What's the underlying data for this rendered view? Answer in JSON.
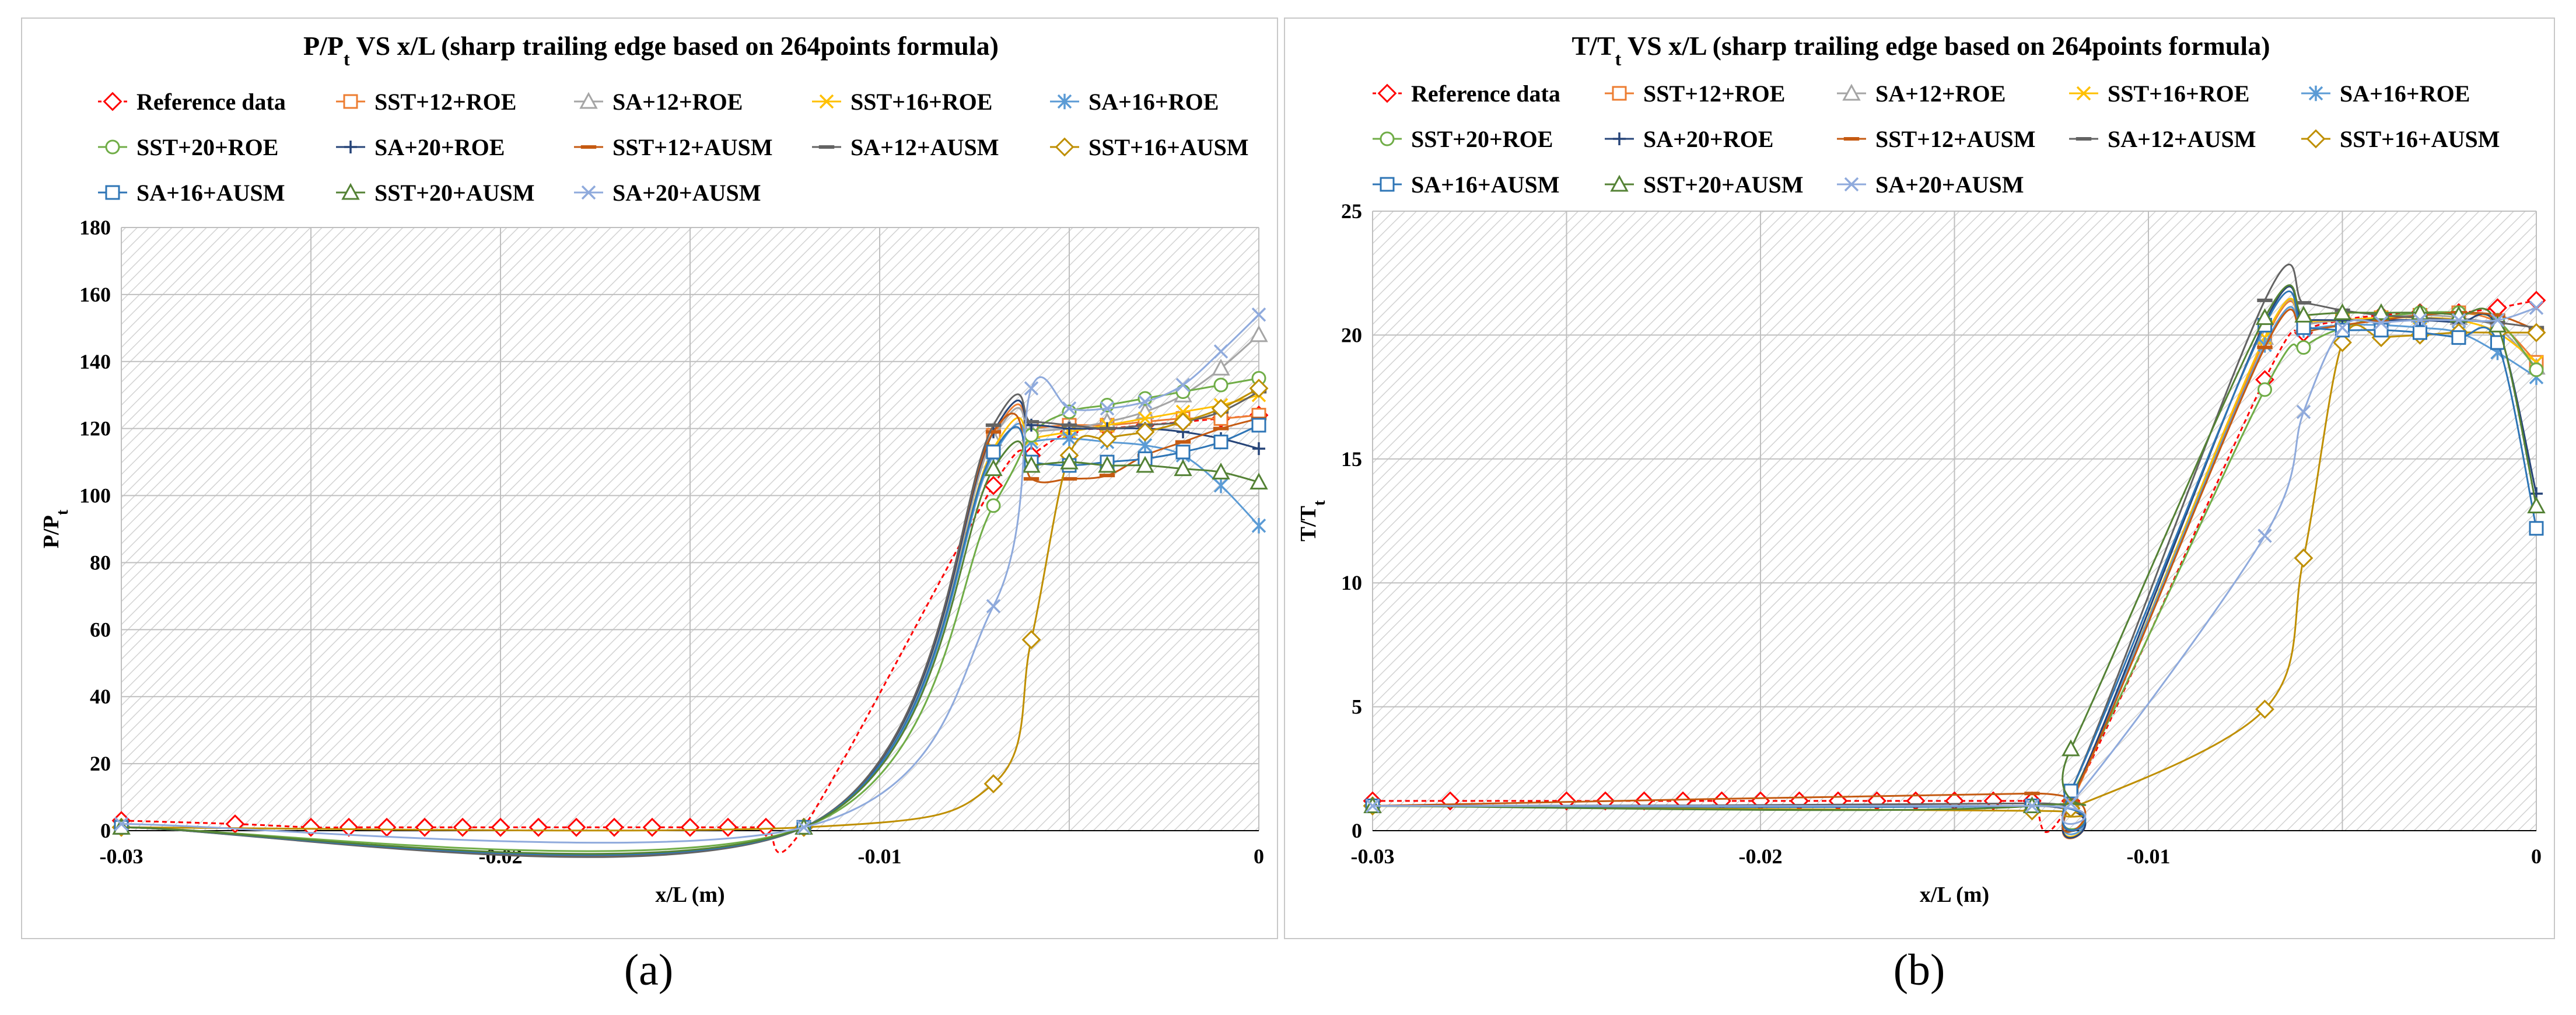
{
  "panel_labels": [
    "(a)",
    "(b)"
  ],
  "series_styles": [
    {
      "name": "Reference data",
      "color": "#ff0000",
      "marker": "diamond",
      "dashed": true
    },
    {
      "name": "SST+12+ROE",
      "color": "#ed7d31",
      "marker": "square"
    },
    {
      "name": "SA+12+ROE",
      "color": "#a5a5a5",
      "marker": "triangle"
    },
    {
      "name": "SST+16+ROE",
      "color": "#ffc000",
      "marker": "x"
    },
    {
      "name": "SA+16+ROE",
      "color": "#5b9bd5",
      "marker": "star"
    },
    {
      "name": "SST+20+ROE",
      "color": "#70ad47",
      "marker": "circle"
    },
    {
      "name": "SA+20+ROE",
      "color": "#264478",
      "marker": "plus"
    },
    {
      "name": "SST+12+AUSM",
      "color": "#c55a11",
      "marker": "dash"
    },
    {
      "name": "SA+12+AUSM",
      "color": "#636363",
      "marker": "dash"
    },
    {
      "name": "SST+16+AUSM",
      "color": "#bf8f00",
      "marker": "diamond"
    },
    {
      "name": "SA+16+AUSM",
      "color": "#2e75b6",
      "marker": "square"
    },
    {
      "name": "SST+20+AUSM",
      "color": "#548235",
      "marker": "triangle"
    },
    {
      "name": "SA+20+AUSM",
      "color": "#8faadc",
      "marker": "x"
    }
  ],
  "chart_data": [
    {
      "type": "line",
      "title_main": "P/P",
      "title_sub": "t",
      "title_rest": " VS x/L (sharp trailing edge based on 264points formula)",
      "xlabel": "x/L (m)",
      "ylabel_main": "P/P",
      "ylabel_sub": "t",
      "xlim": [
        -0.03,
        0
      ],
      "ylim": [
        0,
        180
      ],
      "x_ticks": [
        -0.03,
        -0.02,
        -0.01,
        0
      ],
      "x_tick_labels": [
        "-0.03",
        "-0.02",
        "-0.01",
        "0"
      ],
      "y_ticks": [
        0,
        20,
        40,
        60,
        80,
        100,
        120,
        140,
        160,
        180
      ],
      "y_tick_labels": [
        "0",
        "20",
        "40",
        "60",
        "80",
        "100",
        "120",
        "140",
        "160",
        "180"
      ],
      "legend_cols": 5,
      "series": [
        {
          "name": "Reference data",
          "x": [
            -0.03,
            -0.027,
            -0.025,
            -0.024,
            -0.023,
            -0.022,
            -0.021,
            -0.02,
            -0.019,
            -0.018,
            -0.017,
            -0.016,
            -0.015,
            -0.014,
            -0.013,
            -0.012,
            -0.007,
            -0.006,
            -0.005,
            -0.004,
            -0.003,
            -0.002,
            -0.001,
            0
          ],
          "y": [
            3,
            2,
            1,
            1,
            1,
            1,
            1,
            1,
            1,
            1,
            1,
            1,
            1,
            1,
            1,
            1,
            103,
            112,
            119,
            120,
            121,
            122,
            123,
            124
          ]
        },
        {
          "name": "SST+12+ROE",
          "x": [
            -0.03,
            -0.012,
            -0.007,
            -0.006,
            -0.005,
            -0.004,
            -0.003,
            -0.002,
            -0.001,
            0
          ],
          "y": [
            1,
            1,
            118,
            120,
            121,
            121,
            122,
            123,
            123,
            124
          ]
        },
        {
          "name": "SA+12+ROE",
          "x": [
            -0.03,
            -0.012,
            -0.007,
            -0.006,
            -0.005,
            -0.004,
            -0.003,
            -0.002,
            -0.001,
            0
          ],
          "y": [
            1,
            1,
            117,
            119,
            120,
            122,
            125,
            130,
            138,
            148
          ]
        },
        {
          "name": "SST+16+ROE",
          "x": [
            -0.03,
            -0.012,
            -0.007,
            -0.006,
            -0.005,
            -0.004,
            -0.003,
            -0.002,
            -0.001,
            0
          ],
          "y": [
            1,
            1,
            114,
            117,
            119,
            121,
            123,
            125,
            127,
            130
          ]
        },
        {
          "name": "SA+16+ROE",
          "x": [
            -0.03,
            -0.012,
            -0.007,
            -0.006,
            -0.005,
            -0.004,
            -0.003,
            -0.002,
            -0.001,
            0
          ],
          "y": [
            1,
            1,
            112,
            116,
            117,
            116,
            115,
            112,
            103,
            91
          ]
        },
        {
          "name": "SST+20+ROE",
          "x": [
            -0.03,
            -0.012,
            -0.007,
            -0.006,
            -0.005,
            -0.004,
            -0.003,
            -0.002,
            -0.001,
            0
          ],
          "y": [
            1,
            1,
            97,
            118,
            125,
            127,
            129,
            131,
            133,
            135
          ]
        },
        {
          "name": "SA+20+ROE",
          "x": [
            -0.03,
            -0.012,
            -0.007,
            -0.006,
            -0.005,
            -0.004,
            -0.003,
            -0.002,
            -0.001,
            0
          ],
          "y": [
            1,
            1,
            119,
            121,
            120,
            120,
            120,
            119,
            117,
            114
          ]
        },
        {
          "name": "SST+12+AUSM",
          "x": [
            -0.03,
            -0.012,
            -0.007,
            -0.006,
            -0.005,
            -0.004,
            -0.003,
            -0.002,
            -0.001,
            0
          ],
          "y": [
            1,
            1,
            119,
            105,
            105,
            106,
            112,
            116,
            120,
            123
          ]
        },
        {
          "name": "SA+12+AUSM",
          "x": [
            -0.03,
            -0.012,
            -0.007,
            -0.006,
            -0.005,
            -0.004,
            -0.003,
            -0.002,
            -0.001,
            0
          ],
          "y": [
            1,
            1,
            121,
            122,
            121,
            120,
            121,
            122,
            125,
            131
          ]
        },
        {
          "name": "SST+16+AUSM",
          "x": [
            -0.03,
            -0.012,
            -0.007,
            -0.006,
            -0.005,
            -0.004,
            -0.003,
            -0.002,
            -0.001,
            0
          ],
          "y": [
            1,
            1,
            14,
            57,
            112,
            117,
            119,
            122,
            126,
            132
          ]
        },
        {
          "name": "SA+16+AUSM",
          "x": [
            -0.03,
            -0.012,
            -0.007,
            -0.006,
            -0.005,
            -0.004,
            -0.003,
            -0.002,
            -0.001,
            0
          ],
          "y": [
            1,
            1,
            113,
            110,
            109,
            110,
            111,
            113,
            116,
            121
          ]
        },
        {
          "name": "SST+20+AUSM",
          "x": [
            -0.03,
            -0.012,
            -0.007,
            -0.006,
            -0.005,
            -0.004,
            -0.003,
            -0.002,
            -0.001,
            0
          ],
          "y": [
            1,
            1,
            108,
            109,
            110,
            109,
            109,
            108,
            107,
            104
          ]
        },
        {
          "name": "SA+20+AUSM",
          "x": [
            -0.03,
            -0.012,
            -0.007,
            -0.006,
            -0.005,
            -0.004,
            -0.003,
            -0.002,
            -0.001,
            0
          ],
          "y": [
            2,
            1,
            67,
            132,
            126,
            126,
            128,
            133,
            143,
            154
          ]
        }
      ]
    },
    {
      "type": "line",
      "title_main": "T/T",
      "title_sub": "t",
      "title_rest": " VS x/L (sharp trailing edge based on 264points formula)",
      "xlabel": "x/L (m)",
      "ylabel_main": "T/T",
      "ylabel_sub": "t",
      "xlim": [
        -0.03,
        0
      ],
      "ylim": [
        0,
        25
      ],
      "x_ticks": [
        -0.03,
        -0.02,
        -0.01,
        0
      ],
      "x_tick_labels": [
        "-0.03",
        "-0.02",
        "-0.01",
        "0"
      ],
      "y_ticks": [
        0,
        5,
        10,
        15,
        20,
        25
      ],
      "y_tick_labels": [
        "0",
        "5",
        "10",
        "15",
        "20",
        "25"
      ],
      "legend_cols": 5,
      "series": [
        {
          "name": "Reference data",
          "x": [
            -0.03,
            -0.028,
            -0.025,
            -0.024,
            -0.023,
            -0.022,
            -0.021,
            -0.02,
            -0.019,
            -0.018,
            -0.017,
            -0.016,
            -0.015,
            -0.014,
            -0.013,
            -0.012,
            -0.007,
            -0.006,
            -0.005,
            -0.004,
            -0.003,
            -0.002,
            -0.001,
            0
          ],
          "y": [
            1.2,
            1.2,
            1.2,
            1.2,
            1.2,
            1.2,
            1.2,
            1.2,
            1.2,
            1.2,
            1.2,
            1.2,
            1.2,
            1.2,
            1.2,
            1.2,
            18.2,
            20.1,
            20.6,
            20.8,
            20.9,
            20.9,
            21.1,
            21.4
          ]
        },
        {
          "name": "SST+12+ROE",
          "x": [
            -0.03,
            -0.013,
            -0.012,
            -0.007,
            -0.006,
            -0.005,
            -0.004,
            -0.003,
            -0.002,
            -0.001,
            0
          ],
          "y": [
            1.0,
            1.0,
            1.1,
            19.8,
            20.4,
            20.6,
            20.7,
            20.8,
            20.9,
            20.5,
            18.9
          ]
        },
        {
          "name": "SA+12+ROE",
          "x": [
            -0.03,
            -0.013,
            -0.012,
            -0.007,
            -0.006,
            -0.005,
            -0.004,
            -0.003,
            -0.002,
            -0.001,
            0
          ],
          "y": [
            1.0,
            1.0,
            1.2,
            19.9,
            20.4,
            20.6,
            20.7,
            20.8,
            20.7,
            20.3,
            18.7
          ]
        },
        {
          "name": "SST+16+ROE",
          "x": [
            -0.03,
            -0.013,
            -0.012,
            -0.007,
            -0.006,
            -0.005,
            -0.004,
            -0.003,
            -0.002,
            -0.001,
            0
          ],
          "y": [
            1.0,
            1.0,
            1.2,
            19.9,
            20.5,
            20.6,
            20.7,
            20.7,
            20.6,
            20.1,
            18.9
          ]
        },
        {
          "name": "SA+16+ROE",
          "x": [
            -0.03,
            -0.013,
            -0.012,
            -0.007,
            -0.006,
            -0.005,
            -0.004,
            -0.003,
            -0.002,
            -0.001,
            0
          ],
          "y": [
            1.0,
            1.0,
            1.3,
            19.6,
            20.2,
            20.4,
            20.4,
            20.3,
            20.1,
            19.3,
            18.3
          ]
        },
        {
          "name": "SST+20+ROE",
          "x": [
            -0.03,
            -0.013,
            -0.012,
            -0.007,
            -0.006,
            -0.005,
            -0.004,
            -0.003,
            -0.002,
            -0.001,
            0
          ],
          "y": [
            1.0,
            1.0,
            1.4,
            17.8,
            19.5,
            20.3,
            20.7,
            20.9,
            20.9,
            20.6,
            18.6
          ]
        },
        {
          "name": "SA+20+ROE",
          "x": [
            -0.03,
            -0.013,
            -0.012,
            -0.007,
            -0.006,
            -0.005,
            -0.004,
            -0.003,
            -0.002,
            -0.001,
            0
          ],
          "y": [
            1.0,
            1.0,
            1.2,
            20.5,
            20.6,
            20.6,
            20.6,
            20.6,
            20.5,
            20.3,
            13.6
          ]
        },
        {
          "name": "SST+12+AUSM",
          "x": [
            -0.03,
            -0.013,
            -0.012,
            -0.007,
            -0.006,
            -0.005,
            -0.004,
            -0.003,
            -0.002,
            -0.001,
            0
          ],
          "y": [
            1.0,
            1.5,
            1.2,
            19.5,
            20.1,
            20.4,
            20.6,
            20.8,
            20.9,
            20.8,
            20.2
          ]
        },
        {
          "name": "SA+12+AUSM",
          "x": [
            -0.03,
            -0.013,
            -0.012,
            -0.007,
            -0.006,
            -0.005,
            -0.004,
            -0.003,
            -0.002,
            -0.001,
            0
          ],
          "y": [
            1.0,
            1.1,
            1.6,
            21.4,
            21.3,
            21.0,
            20.8,
            20.7,
            20.6,
            20.5,
            20.3
          ]
        },
        {
          "name": "SST+16+AUSM",
          "x": [
            -0.03,
            -0.013,
            -0.012,
            -0.007,
            -0.006,
            -0.005,
            -0.004,
            -0.003,
            -0.002,
            -0.001,
            0
          ],
          "y": [
            1.0,
            0.8,
            0.9,
            4.9,
            11.0,
            19.7,
            19.9,
            20.0,
            20.1,
            20.1,
            20.1
          ]
        },
        {
          "name": "SA+16+AUSM",
          "x": [
            -0.03,
            -0.013,
            -0.012,
            -0.007,
            -0.006,
            -0.005,
            -0.004,
            -0.003,
            -0.002,
            -0.001,
            0
          ],
          "y": [
            1.0,
            1.0,
            1.6,
            20.4,
            20.3,
            20.2,
            20.2,
            20.1,
            19.9,
            19.7,
            12.2
          ]
        },
        {
          "name": "SST+20+AUSM",
          "x": [
            -0.03,
            -0.013,
            -0.012,
            -0.007,
            -0.006,
            -0.005,
            -0.004,
            -0.003,
            -0.002,
            -0.001,
            0
          ],
          "y": [
            1.0,
            1.0,
            3.3,
            20.7,
            20.8,
            20.9,
            20.9,
            20.9,
            20.8,
            20.4,
            13.1
          ]
        },
        {
          "name": "SA+20+AUSM",
          "x": [
            -0.03,
            -0.013,
            -0.012,
            -0.007,
            -0.006,
            -0.005,
            -0.004,
            -0.003,
            -0.002,
            -0.001,
            0
          ],
          "y": [
            1.0,
            1.0,
            1.1,
            11.9,
            16.9,
            20.3,
            20.5,
            20.6,
            20.6,
            20.6,
            21.1
          ]
        }
      ]
    }
  ]
}
